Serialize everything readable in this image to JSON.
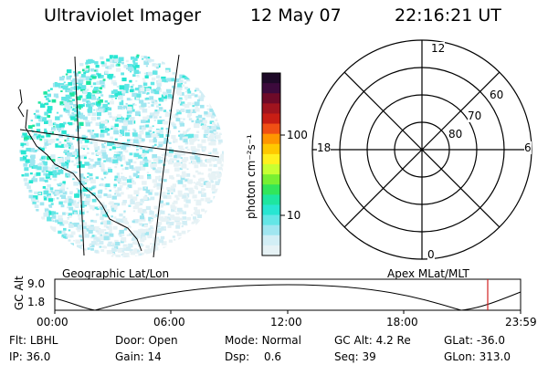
{
  "header": {
    "instrument": "Ultraviolet Imager",
    "date": "12 May 07",
    "time": "22:16:21 UT"
  },
  "image_panel": {
    "label": "Geographic Lat/Lon"
  },
  "colorbar": {
    "unit_label": "photon cm⁻²s⁻¹",
    "ticks": [
      "100",
      "10"
    ],
    "colors": [
      "#1e0a28",
      "#3c0a3c",
      "#6e0a28",
      "#a0141e",
      "#c81e14",
      "#f05014",
      "#ff9600",
      "#ffc800",
      "#fff01e",
      "#c8ff32",
      "#78f032",
      "#32e65a",
      "#1ee6a0",
      "#28e6d2",
      "#64e6e6",
      "#a0e6f0",
      "#d2eef5",
      "#e6f2f5"
    ]
  },
  "polar_panel": {
    "label": "Apex MLat/MLT",
    "mlt_labels": {
      "top": "12",
      "bottom": "0",
      "left": "18",
      "right": "6"
    },
    "mlat_labels": [
      "60",
      "70",
      "80"
    ]
  },
  "timeline": {
    "ylabel": "GC Alt",
    "yticks": [
      "9.0",
      "1.8"
    ],
    "xticks": [
      "00:00",
      "06:00",
      "12:00",
      "18:00",
      "23:59"
    ],
    "marker_color": "#d22020"
  },
  "footer": {
    "row1": [
      {
        "label": "Flt:",
        "value": "LBHL"
      },
      {
        "label": "Door:",
        "value": "Open"
      },
      {
        "label": "Mode:",
        "value": "Normal"
      },
      {
        "label": "GC Alt:",
        "value": "4.2 Re"
      },
      {
        "label": "GLat:",
        "value": "-36.0"
      }
    ],
    "row2": [
      {
        "label": "IP:",
        "value": "36.0"
      },
      {
        "label": "Gain:",
        "value": "14"
      },
      {
        "label": "Dsp:",
        "value": "0.6"
      },
      {
        "label": "Seq:",
        "value": "39"
      },
      {
        "label": "GLon:",
        "value": "313.0"
      }
    ]
  }
}
